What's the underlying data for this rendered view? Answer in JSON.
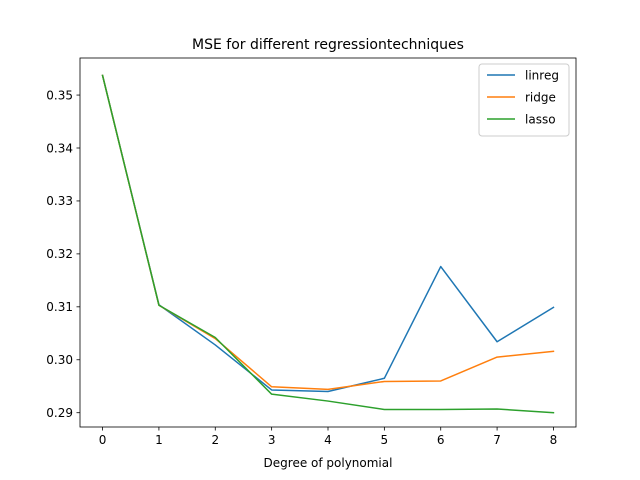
{
  "chart_data": {
    "type": "line",
    "title": "MSE for different regressiontechniques",
    "xlabel": "Degree of polynomial",
    "ylabel": "",
    "x": [
      0,
      1,
      2,
      3,
      4,
      5,
      6,
      7,
      8
    ],
    "xticks": [
      "0",
      "1",
      "2",
      "3",
      "4",
      "5",
      "6",
      "7",
      "8"
    ],
    "yticks": [
      0.29,
      0.3,
      0.31,
      0.32,
      0.33,
      0.34,
      0.35
    ],
    "ytick_labels": [
      "0.29",
      "0.30",
      "0.31",
      "0.32",
      "0.33",
      "0.34",
      "0.35"
    ],
    "xlim": [
      -0.4,
      8.4
    ],
    "ylim": [
      0.2873,
      0.357
    ],
    "grid": false,
    "legend": "top-right",
    "series": [
      {
        "name": "linreg",
        "color": "#1f77b4",
        "values": [
          0.3537,
          0.3104,
          0.3028,
          0.2943,
          0.294,
          0.2965,
          0.3176,
          0.3034,
          0.3099
        ]
      },
      {
        "name": "ridge",
        "color": "#ff7f0e",
        "values": [
          0.3537,
          0.3103,
          0.304,
          0.2949,
          0.2944,
          0.2959,
          0.296,
          0.3005,
          0.3016
        ]
      },
      {
        "name": "lasso",
        "color": "#2ca02c",
        "values": [
          0.3537,
          0.3103,
          0.3042,
          0.2935,
          0.2922,
          0.2906,
          0.2906,
          0.2907,
          0.29
        ]
      }
    ]
  }
}
